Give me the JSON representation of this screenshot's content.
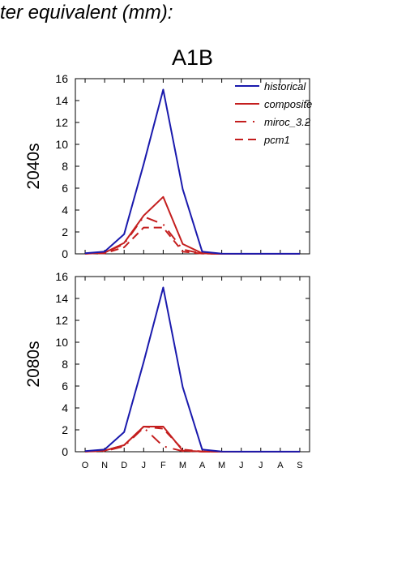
{
  "header": {
    "text": "ter equivalent (mm):"
  },
  "colors": {
    "historical": "#1a1aad",
    "composite": "#c41e1e",
    "miroc": "#c41e1e",
    "pcm1": "#c41e1e"
  },
  "chart_data": [
    {
      "type": "line",
      "title": "A1B",
      "ylabel": "2040s",
      "xlabel": "",
      "ylim": [
        0,
        16
      ],
      "yticks": [
        0,
        2,
        4,
        6,
        8,
        10,
        12,
        14,
        16
      ],
      "x": [
        "O",
        "N",
        "D",
        "J",
        "F",
        "M",
        "A",
        "M",
        "J",
        "J",
        "A",
        "S"
      ],
      "legend_position": "top-right",
      "series": [
        {
          "name": "historical",
          "style": "solid",
          "color": "#1a1aad",
          "values": [
            0.05,
            0.2,
            1.8,
            8.2,
            15.0,
            5.9,
            0.2,
            0.02,
            0.01,
            0.01,
            0.01,
            0.01
          ]
        },
        {
          "name": "composite",
          "style": "solid",
          "color": "#c41e1e",
          "values": [
            0.02,
            0.1,
            1.0,
            3.5,
            5.2,
            0.9,
            0.05,
            0.0,
            0.0,
            0.0,
            0.0,
            0.0
          ]
        },
        {
          "name": "miroc_3.2",
          "style": "dashdot",
          "color": "#c41e1e",
          "values": [
            0.02,
            0.1,
            0.9,
            3.4,
            2.7,
            0.4,
            0.02,
            0.0,
            0.0,
            0.0,
            0.0,
            0.0
          ]
        },
        {
          "name": "pcm1",
          "style": "dashed",
          "color": "#c41e1e",
          "values": [
            0.02,
            0.05,
            0.6,
            2.4,
            2.4,
            0.2,
            0.02,
            0.0,
            0.0,
            0.0,
            0.0,
            0.0
          ]
        }
      ]
    },
    {
      "type": "line",
      "title": "",
      "ylabel": "2080s",
      "xlabel": "",
      "ylim": [
        0,
        16
      ],
      "yticks": [
        0,
        2,
        4,
        6,
        8,
        10,
        12,
        14,
        16
      ],
      "x": [
        "O",
        "N",
        "D",
        "J",
        "F",
        "M",
        "A",
        "M",
        "J",
        "J",
        "A",
        "S"
      ],
      "series": [
        {
          "name": "historical",
          "style": "solid",
          "color": "#1a1aad",
          "values": [
            0.05,
            0.2,
            1.8,
            8.2,
            15.0,
            5.9,
            0.2,
            0.02,
            0.01,
            0.01,
            0.01,
            0.01
          ]
        },
        {
          "name": "composite",
          "style": "solid",
          "color": "#c41e1e",
          "values": [
            0.02,
            0.1,
            0.6,
            2.3,
            2.3,
            0.1,
            0.02,
            0.0,
            0.0,
            0.0,
            0.0,
            0.0
          ]
        },
        {
          "name": "miroc_3.2",
          "style": "dashdot",
          "color": "#c41e1e",
          "values": [
            0.02,
            0.05,
            0.5,
            2.2,
            0.5,
            0.05,
            0.01,
            0.0,
            0.0,
            0.0,
            0.0,
            0.0
          ]
        },
        {
          "name": "pcm1",
          "style": "dashed",
          "color": "#c41e1e",
          "values": [
            0.02,
            0.1,
            0.6,
            2.3,
            2.1,
            0.2,
            0.02,
            0.0,
            0.0,
            0.0,
            0.0,
            0.0
          ]
        }
      ]
    }
  ]
}
